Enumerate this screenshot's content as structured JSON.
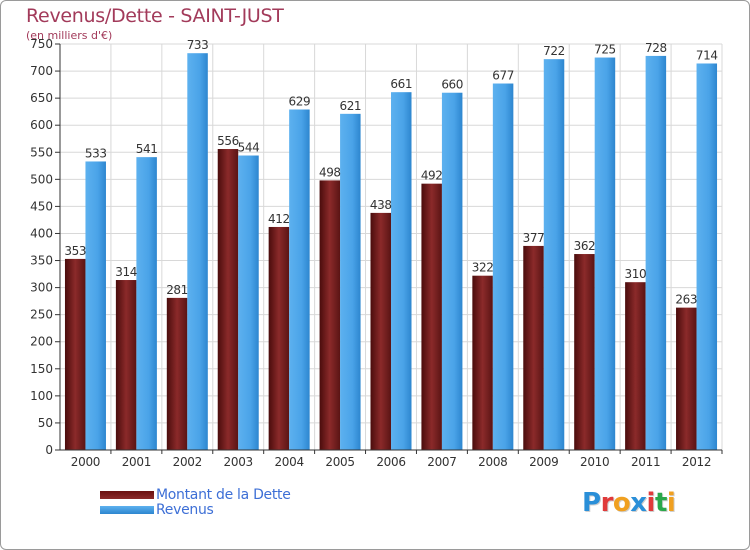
{
  "title": "Revenus/Dette - SAINT-JUST",
  "subtitle": "(en milliers d'€)",
  "legend": {
    "dette_label": "Montant de la Dette",
    "revenus_label": "Revenus"
  },
  "logo": {
    "letters": [
      "P",
      "r",
      "o",
      "x",
      "i",
      "t",
      "i"
    ],
    "colors": [
      "#2a8fd8",
      "#e03a3a",
      "#f0a020",
      "#2a8fd8",
      "#e03a3a",
      "#2aa84a",
      "#f0a020"
    ]
  },
  "colors": {
    "dette": "#7a1f1f",
    "revenus": "#4aa3e8",
    "title": "#a23a5a",
    "axis": "#333333",
    "grid": "#d8d8d8"
  },
  "chart_data": {
    "type": "bar",
    "title": "Revenus/Dette - SAINT-JUST",
    "subtitle": "(en milliers d'€)",
    "categories": [
      "2000",
      "2001",
      "2002",
      "2003",
      "2004",
      "2005",
      "2006",
      "2007",
      "2008",
      "2009",
      "2010",
      "2011",
      "2012"
    ],
    "series": [
      {
        "name": "Montant de la Dette",
        "values": [
          353,
          314,
          281,
          556,
          412,
          498,
          438,
          492,
          322,
          377,
          362,
          310,
          263
        ]
      },
      {
        "name": "Revenus",
        "values": [
          533,
          541,
          733,
          544,
          629,
          621,
          661,
          660,
          677,
          722,
          725,
          728,
          714
        ]
      }
    ],
    "ylim": [
      0,
      750
    ],
    "yticks": [
      0,
      50,
      100,
      150,
      200,
      250,
      300,
      350,
      400,
      450,
      500,
      550,
      600,
      650,
      700,
      750
    ],
    "grid": true,
    "legend_position": "bottom-left"
  }
}
